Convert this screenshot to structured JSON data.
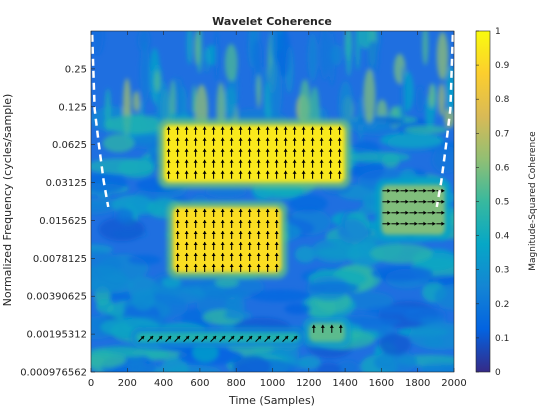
{
  "chart_data": {
    "type": "heatmap",
    "title": "Wavelet Coherence",
    "xlabel": "Time (Samples)",
    "ylabel": "Normalized Frequency  (cycles/sample)",
    "colorbar_label": "Magnitude-Squared Coherence",
    "xlim": [
      0,
      2000
    ],
    "x_ticks": [
      0,
      200,
      400,
      600,
      800,
      1000,
      1200,
      1400,
      1600,
      1800,
      2000
    ],
    "y_scale": "log2",
    "ylim": [
      0.000976562,
      0.5
    ],
    "y_ticks": [
      0.25,
      0.125,
      0.0625,
      0.03125,
      0.015625,
      0.0078125,
      0.00390625,
      0.00195312,
      0.000976562
    ],
    "y_tick_labels": [
      "0.25",
      "0.125",
      "0.0625",
      "0.03125",
      "0.015625",
      "0.0078125",
      "0.00390625",
      "0.00195312",
      "0.000976562"
    ],
    "clim": [
      0,
      1
    ],
    "colorbar_ticks": [
      0,
      0.1,
      0.2,
      0.3,
      0.4,
      0.5,
      0.6,
      0.7,
      0.8,
      0.9,
      1
    ],
    "colormap": "parula",
    "grid": false,
    "high_coherence_regions": [
      {
        "t_range": [
          400,
          1400
        ],
        "f_range": [
          0.03125,
          0.09
        ],
        "coherence": 0.95,
        "phase_arrow": "up"
      },
      {
        "t_range": [
          450,
          1050
        ],
        "f_range": [
          0.006,
          0.02
        ],
        "coherence": 0.92,
        "phase_arrow": "up"
      },
      {
        "t_range": [
          1200,
          1400
        ],
        "f_range": [
          0.0017,
          0.0024
        ],
        "coherence": 0.55,
        "phase_arrow": "up"
      },
      {
        "t_range": [
          250,
          1150
        ],
        "f_range": [
          0.0017,
          0.002
        ],
        "coherence": 0.45,
        "phase_arrow": "right-up"
      },
      {
        "t_range": [
          1600,
          1950
        ],
        "f_range": [
          0.012,
          0.03
        ],
        "coherence": 0.6,
        "phase_arrow": "right"
      }
    ]
  }
}
